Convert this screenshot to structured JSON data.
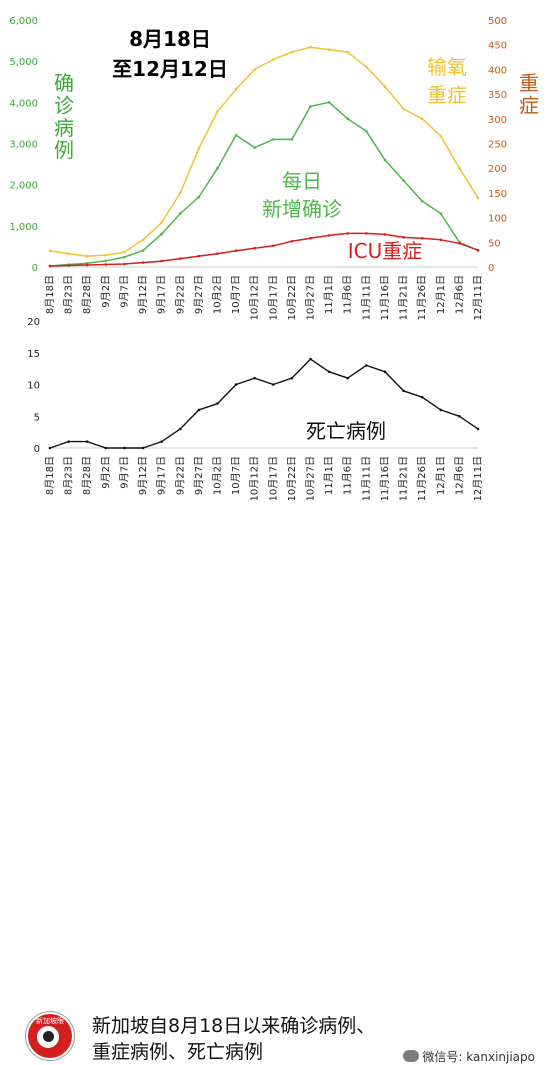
{
  "chart_data": [
    {
      "type": "line",
      "title_lines": [
        "8月18日",
        "至12月12日"
      ],
      "x": [
        "8月18日",
        "8月23日",
        "8月28日",
        "9月2日",
        "9月7日",
        "9月12日",
        "9月17日",
        "9月22日",
        "9月27日",
        "10月2日",
        "10月7日",
        "10月12日",
        "10月17日",
        "10月22日",
        "10月27日",
        "11月1日",
        "11月6日",
        "11月11日",
        "11月16日",
        "11月21日",
        "11月26日",
        "12月1日",
        "12月6日",
        "12月11日"
      ],
      "y_left": {
        "label": "确诊病例",
        "range": [
          0,
          6000
        ],
        "ticks": [
          "0",
          "1,000",
          "2,000",
          "3,000",
          "4,000",
          "5,000",
          "6,000"
        ],
        "color": "#3aa935"
      },
      "y_right": {
        "label": "重症",
        "range": [
          0,
          500
        ],
        "ticks": [
          "0",
          "50",
          "100",
          "150",
          "200",
          "250",
          "300",
          "350",
          "400",
          "450",
          "500"
        ],
        "color": "#c65a18"
      },
      "series": [
        {
          "name": "每日新增确诊",
          "axis": "left",
          "color": "#4cb84a",
          "values": [
            25,
            60,
            90,
            150,
            240,
            400,
            800,
            1300,
            1700,
            2400,
            3200,
            2900,
            3100,
            3100,
            3900,
            4000,
            3600,
            3300,
            2600,
            2100,
            1600,
            1300,
            600,
            400
          ]
        },
        {
          "name": "输氧重症",
          "axis": "right",
          "color": "#f2c232",
          "values": [
            33,
            27,
            22,
            24,
            30,
            55,
            90,
            150,
            240,
            315,
            360,
            400,
            420,
            435,
            445,
            440,
            435,
            405,
            365,
            320,
            300,
            265,
            200,
            140
          ]
        },
        {
          "name": "ICU重症",
          "axis": "right",
          "color": "#d41f1f",
          "values": [
            2,
            3,
            4,
            5,
            6,
            9,
            12,
            17,
            22,
            27,
            33,
            38,
            43,
            52,
            58,
            64,
            68,
            68,
            66,
            60,
            58,
            55,
            48,
            34
          ]
        }
      ]
    },
    {
      "type": "line",
      "x": [
        "8月18日",
        "8月23日",
        "8月28日",
        "9月2日",
        "9月7日",
        "9月12日",
        "9月17日",
        "9月22日",
        "9月27日",
        "10月2日",
        "10月7日",
        "10月12日",
        "10月17日",
        "10月22日",
        "10月27日",
        "11月1日",
        "11月6日",
        "11月11日",
        "11月16日",
        "11月21日",
        "11月26日",
        "12月1日",
        "12月6日",
        "12月11日"
      ],
      "y": {
        "range": [
          0,
          20
        ],
        "ticks": [
          "0",
          "5",
          "10",
          "15",
          "20"
        ]
      },
      "series": [
        {
          "name": "死亡病例",
          "color": "#111111",
          "values": [
            0,
            1,
            1,
            0,
            0,
            0,
            1,
            3,
            6,
            7,
            10,
            11,
            10,
            11,
            14,
            12,
            11,
            13,
            12,
            9,
            8,
            6,
            5,
            3
          ]
        }
      ]
    }
  ],
  "footer": {
    "logo_text": "新加坡眼",
    "caption_lines": [
      "新加坡自8月18日以来确诊病例、",
      "重症病例、死亡病例"
    ],
    "wechat": "微信号: kanxinjiapo"
  }
}
